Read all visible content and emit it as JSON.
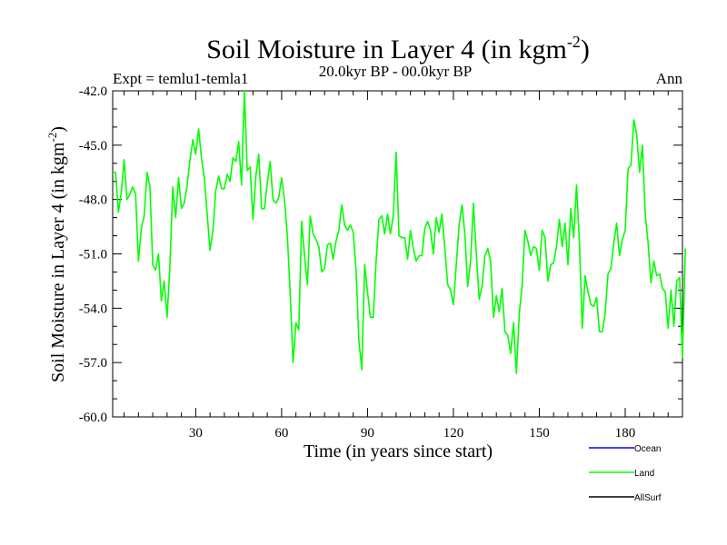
{
  "chart_data": {
    "type": "line",
    "title_main": "Soil Moisture in Layer 4 (in kgm",
    "title_sup": "-2",
    "title_close": ")",
    "subtitle_left": "Expt = temlu1-temla1",
    "subtitle_center": "20.0kyr BP - 00.0kyr BP",
    "subtitle_right": "Ann",
    "xlabel": "Time (in years since start)",
    "ylabel_main": "Soil Moisture in Layer 4 (in kgm",
    "ylabel_sup": "-2",
    "ylabel_close": ")",
    "xlim": [
      1,
      200
    ],
    "ylim": [
      -60,
      -42
    ],
    "xticks": [
      30,
      60,
      90,
      120,
      150,
      180
    ],
    "xtick_labels": [
      "30",
      "60",
      "90",
      "120",
      "150",
      "180"
    ],
    "yticks": [
      -60,
      -57,
      -54,
      -51,
      -48,
      -45,
      -42
    ],
    "ytick_labels": [
      "-60.0",
      "-57.0",
      "-54.0",
      "-51.0",
      "-48.0",
      "-45.0",
      "-42.0"
    ],
    "legend": [
      {
        "name": "Ocean",
        "color": "#0000ff"
      },
      {
        "name": "Land",
        "color": "#00ff00"
      },
      {
        "name": "AllSurf",
        "color": "#000000"
      }
    ],
    "series": [
      {
        "name": "Land",
        "color": "#00ff00",
        "x_start": 1,
        "x_step": 1,
        "values": [
          -46.5,
          -46.5,
          -48.7,
          -47.6,
          -45.8,
          -48.0,
          -47.7,
          -47.3,
          -47.7,
          -51.4,
          -49.6,
          -48.9,
          -46.5,
          -47.3,
          -51.6,
          -51.9,
          -51.0,
          -53.6,
          -52.5,
          -54.5,
          -51.6,
          -47.3,
          -49.0,
          -46.8,
          -48.5,
          -48.2,
          -47.2,
          -45.8,
          -44.7,
          -45.5,
          -44.1,
          -45.7,
          -46.8,
          -48.8,
          -50.8,
          -49.7,
          -47.5,
          -46.7,
          -47.4,
          -47.4,
          -46.6,
          -47.0,
          -45.7,
          -45.9,
          -44.8,
          -47.2,
          -42.0,
          -46.4,
          -46.2,
          -49.1,
          -46.7,
          -45.5,
          -48.5,
          -48.5,
          -47.1,
          -45.9,
          -48.0,
          -48.2,
          -47.9,
          -46.8,
          -48.0,
          -50.0,
          -53.2,
          -57.0,
          -54.8,
          -55.2,
          -49.2,
          -51.1,
          -52.7,
          -48.9,
          -49.9,
          -50.2,
          -50.6,
          -52.0,
          -51.8,
          -50.5,
          -50.4,
          -51.3,
          -50.3,
          -49.7,
          -48.3,
          -49.4,
          -49.7,
          -49.4,
          -49.8,
          -51.9,
          -55.8,
          -57.4,
          -51.6,
          -53.1,
          -54.5,
          -54.5,
          -51.4,
          -49.1,
          -48.9,
          -49.9,
          -48.8,
          -49.9,
          -48.9,
          -45.4,
          -50.0,
          -50.1,
          -50.1,
          -51.3,
          -49.7,
          -50.7,
          -51.4,
          -51.1,
          -51.1,
          -49.6,
          -49.2,
          -49.7,
          -51.0,
          -49.0,
          -49.8,
          -48.8,
          -50.7,
          -52.7,
          -53.0,
          -53.8,
          -51.6,
          -49.4,
          -48.3,
          -49.9,
          -52.8,
          -51.4,
          -48.2,
          -51.0,
          -53.5,
          -52.8,
          -51.1,
          -50.7,
          -51.4,
          -54.5,
          -53.3,
          -54.2,
          -52.9,
          -55.3,
          -55.5,
          -56.5,
          -54.8,
          -57.6,
          -54.3,
          -52.7,
          -49.7,
          -50.3,
          -51.1,
          -50.6,
          -50.7,
          -51.9,
          -49.7,
          -50.1,
          -52.5,
          -51.6,
          -51.5,
          -50.6,
          -49.1,
          -50.6,
          -49.3,
          -51.6,
          -48.5,
          -50.1,
          -47.2,
          -50.3,
          -55.1,
          -52.2,
          -53.1,
          -53.8,
          -53.9,
          -53.4,
          -55.3,
          -55.3,
          -54.3,
          -52.1,
          -51.8,
          -50.4,
          -49.3,
          -51.1,
          -50.2,
          -49.7,
          -46.3,
          -46.1,
          -43.6,
          -44.4,
          -46.5,
          -45.0,
          -48.8,
          -50.4,
          -52.6,
          -51.4,
          -52.2,
          -52.1,
          -52.9,
          -53.1,
          -55.1,
          -53.0,
          -55.0,
          -52.5,
          -52.3,
          -56.7,
          -50.7
        ]
      }
    ]
  }
}
